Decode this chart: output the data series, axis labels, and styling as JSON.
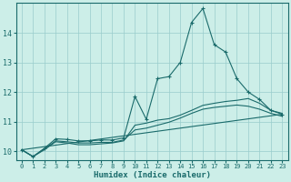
{
  "xlabel": "Humidex (Indice chaleur)",
  "bg_color": "#cceee8",
  "line_color": "#1a6b6b",
  "grid_color": "#99cccc",
  "xlim": [
    -0.5,
    23.5
  ],
  "ylim": [
    9.7,
    15.0
  ],
  "yticks": [
    10,
    11,
    12,
    13,
    14
  ],
  "xticks": [
    0,
    1,
    2,
    3,
    4,
    5,
    6,
    7,
    8,
    9,
    10,
    11,
    12,
    13,
    14,
    15,
    16,
    17,
    18,
    19,
    20,
    21,
    22,
    23
  ],
  "series": [
    {
      "x": [
        0,
        1,
        2,
        3,
        4,
        5,
        6,
        7,
        8,
        9,
        10,
        11,
        12,
        13,
        14,
        15,
        16,
        17,
        18,
        19,
        20,
        21,
        22,
        23
      ],
      "y": [
        10.05,
        9.82,
        10.1,
        10.42,
        10.4,
        10.35,
        10.35,
        10.38,
        10.38,
        10.45,
        11.85,
        11.08,
        12.45,
        12.52,
        13.0,
        14.35,
        14.82,
        13.6,
        13.35,
        12.45,
        12.0,
        11.75,
        11.38,
        11.25
      ],
      "marker": "+"
    },
    {
      "x": [
        0,
        23
      ],
      "y": [
        10.05,
        11.25
      ],
      "marker": null
    },
    {
      "x": [
        0,
        1,
        2,
        3,
        4,
        5,
        6,
        7,
        8,
        9,
        10,
        11,
        12,
        13,
        14,
        15,
        16,
        17,
        18,
        19,
        20,
        21,
        22,
        23
      ],
      "y": [
        10.05,
        9.82,
        10.08,
        10.35,
        10.32,
        10.28,
        10.28,
        10.3,
        10.3,
        10.38,
        10.72,
        10.78,
        10.88,
        10.98,
        11.12,
        11.28,
        11.42,
        11.48,
        11.52,
        11.56,
        11.52,
        11.42,
        11.28,
        11.18
      ],
      "marker": null
    },
    {
      "x": [
        0,
        1,
        2,
        3,
        4,
        5,
        6,
        7,
        8,
        9,
        10,
        11,
        12,
        13,
        14,
        15,
        16,
        17,
        18,
        19,
        20,
        21,
        22,
        23
      ],
      "y": [
        10.05,
        9.82,
        10.05,
        10.32,
        10.28,
        10.22,
        10.22,
        10.25,
        10.28,
        10.35,
        10.88,
        10.95,
        11.05,
        11.1,
        11.22,
        11.38,
        11.55,
        11.62,
        11.68,
        11.72,
        11.78,
        11.62,
        11.38,
        11.28
      ],
      "marker": null
    }
  ]
}
